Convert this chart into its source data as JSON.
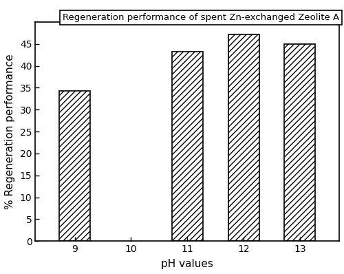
{
  "categories": [
    9,
    10,
    11,
    12,
    13
  ],
  "values": [
    34.2,
    0,
    43.3,
    47.2,
    45.0
  ],
  "xlabel": "pH values",
  "ylabel": "% Regeneration performance",
  "title": "Regeneration performance of spent Zn-exchanged Zeolite A",
  "ylim": [
    0,
    50
  ],
  "yticks": [
    0,
    5,
    10,
    15,
    20,
    25,
    30,
    35,
    40,
    45
  ],
  "bar_width": 0.55,
  "hatch_pattern": "////",
  "bar_color": "white",
  "bar_edgecolor": "black",
  "background_color": "white",
  "title_fontsize": 9.5,
  "axis_label_fontsize": 11,
  "tick_fontsize": 10
}
